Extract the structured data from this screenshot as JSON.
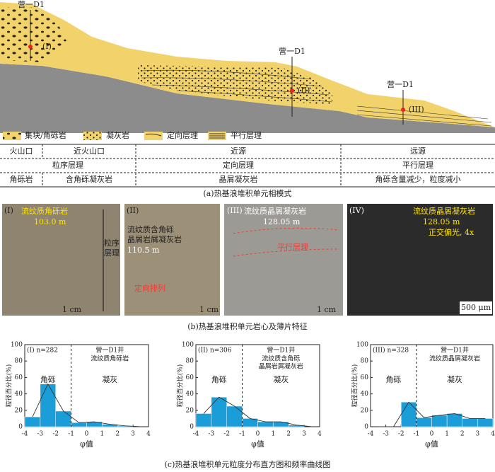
{
  "facies_model": {
    "wells": [
      {
        "name": "营一D1",
        "id": "(I)"
      },
      {
        "name": "营一D1",
        "id": "(II)"
      },
      {
        "name": "营一D1",
        "id": "(III)"
      }
    ],
    "legend": [
      "集块/角砾岩",
      "凝灰岩",
      "定向层理",
      "平行层理"
    ],
    "table": {
      "rows": [
        [
          "火山口",
          "近火山口",
          "近源",
          "远源"
        ],
        [
          "粒序层理",
          "定向层理",
          "平行层理"
        ],
        [
          "角砾岩",
          "含角砾凝灰岩",
          "晶屑凝灰岩",
          "角砾含量减少，粒度减小"
        ]
      ]
    },
    "caption": "(a)热基浪堆积单元相模式"
  },
  "photos": {
    "panels": [
      {
        "id": "(I)",
        "lines": [
          "流纹质角砾岩",
          "103.0 m"
        ],
        "notes": [
          "粒序",
          "层理"
        ],
        "scale": "1 cm"
      },
      {
        "id": "(II)",
        "lines": [
          "流纹质含角砾",
          "晶屑岩屑凝灰岩",
          "110.5 m"
        ],
        "notes": [
          "定向排列"
        ],
        "scale": "1 cm"
      },
      {
        "id": "(III)",
        "lines": [
          "流纹质晶屑凝灰岩",
          "128.05 m"
        ],
        "notes": [
          "平行层理"
        ],
        "scale": "1 cm"
      },
      {
        "id": "(IV)",
        "lines": [
          "流纹质晶屑凝灰岩",
          "128.05 m",
          "正交偏光, 4x"
        ],
        "notes": [],
        "scale": "500 μm"
      }
    ],
    "caption": "(b)热基浪堆积单元岩心及薄片特征"
  },
  "chart_data": [
    {
      "type": "histogram",
      "label": "(I) n=282",
      "well": "营一D1井",
      "lithology": [
        "流纹质角砾岩"
      ],
      "annotations": [
        "角砾",
        "凝灰"
      ],
      "bins": [
        -4,
        -3,
        -2,
        -1,
        0,
        1,
        2,
        3,
        4
      ],
      "values": [
        12,
        52,
        19,
        5,
        6,
        3,
        1,
        0
      ],
      "color": "#1b9ed8",
      "divider": -1,
      "xlim": [
        -4,
        4
      ],
      "xticks": [
        -4,
        -3,
        -2,
        -1,
        0,
        1,
        2,
        3,
        4
      ],
      "ylim": [
        0,
        100
      ],
      "yticks": [
        0,
        20,
        40,
        60,
        80,
        100
      ],
      "xlabel": "φ值",
      "ylabel": "粒径百分比(%)"
    },
    {
      "type": "histogram",
      "label": "(II) n=306",
      "well": "营一D1井",
      "lithology": [
        "流纹质含角砾",
        "晶屑岩屑凝灰岩"
      ],
      "annotations": [
        "角砾",
        "凝灰"
      ],
      "bins": [
        -4,
        -3,
        -2,
        -1,
        0,
        1,
        2,
        3,
        4
      ],
      "values": [
        16,
        36,
        25,
        10,
        6,
        6,
        2,
        0
      ],
      "color": "#1b9ed8",
      "divider": -1,
      "xlim": [
        -4,
        4
      ],
      "xticks": [
        -4,
        -3,
        -2,
        -1,
        0,
        1,
        2,
        3,
        4
      ],
      "ylim": [
        0,
        100
      ],
      "yticks": [
        0,
        20,
        40,
        60,
        80,
        100
      ],
      "xlabel": "φ值",
      "ylabel": "粒径百分比(%)"
    },
    {
      "type": "histogram",
      "label": "(III) n=328",
      "well": "营一D1井",
      "lithology": [
        "流纹质晶屑凝灰岩"
      ],
      "annotations": [
        "角砾",
        "凝灰"
      ],
      "bins": [
        -4,
        -3,
        -2,
        -1,
        0,
        1,
        2,
        3,
        4
      ],
      "values": [
        0,
        0,
        30,
        11,
        14,
        16,
        10,
        10
      ],
      "color": "#1b9ed8",
      "divider": -1,
      "xlim": [
        -4,
        4
      ],
      "xticks": [
        -4,
        -3,
        -2,
        -1,
        0,
        1,
        2,
        3,
        4
      ],
      "ylim": [
        0,
        100
      ],
      "yticks": [
        0,
        20,
        40,
        60,
        80,
        100
      ],
      "xlabel": "φ值",
      "ylabel": "粒径百分比(%)"
    }
  ],
  "caption_c": "(c)热基浪堆积单元粒度分布直方图和频率曲线图"
}
